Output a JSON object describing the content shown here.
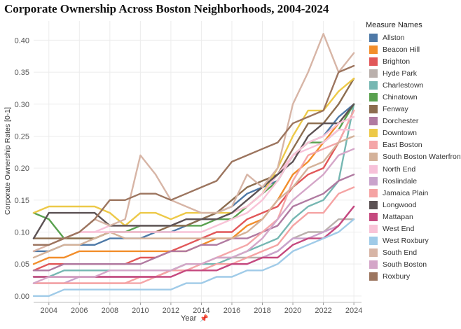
{
  "chart_data": {
    "type": "line",
    "title": "Corporate Ownership Across Boston Neighborhoods, 2004-2024",
    "xlabel": "Year",
    "ylabel": "Corporate Ownership Rates [0-1]",
    "xlim": [
      2003,
      2024.5
    ],
    "ylim": [
      -0.01,
      0.43
    ],
    "x_ticks": [
      "2004",
      "2006",
      "2008",
      "2010",
      "2012",
      "2014",
      "2016",
      "2018",
      "2020",
      "2022",
      "2024"
    ],
    "y_ticks": [
      "0.00",
      "0.05",
      "0.10",
      "0.15",
      "0.20",
      "0.25",
      "0.30",
      "0.35",
      "0.40"
    ],
    "grid": true,
    "legend_title": "Measure Names",
    "legend_position": "right",
    "x": [
      2003,
      2004,
      2005,
      2006,
      2007,
      2008,
      2009,
      2010,
      2011,
      2012,
      2013,
      2014,
      2015,
      2016,
      2017,
      2018,
      2019,
      2020,
      2021,
      2022,
      2023,
      2024
    ],
    "series": [
      {
        "name": "Allston",
        "color": "#4e79a7",
        "values": [
          0.07,
          0.07,
          0.08,
          0.08,
          0.08,
          0.09,
          0.09,
          0.09,
          0.1,
          0.1,
          0.11,
          0.12,
          0.13,
          0.14,
          0.16,
          0.17,
          0.18,
          0.22,
          0.24,
          0.25,
          0.28,
          0.3
        ]
      },
      {
        "name": "Beacon Hill",
        "color": "#f28e2b",
        "values": [
          0.05,
          0.06,
          0.06,
          0.07,
          0.07,
          0.07,
          0.07,
          0.07,
          0.07,
          0.07,
          0.07,
          0.08,
          0.09,
          0.09,
          0.11,
          0.12,
          0.15,
          0.19,
          0.21,
          0.24,
          0.27,
          0.3
        ]
      },
      {
        "name": "Brighton",
        "color": "#e15759",
        "values": [
          0.04,
          0.05,
          0.05,
          0.05,
          0.05,
          0.05,
          0.05,
          0.06,
          0.06,
          0.07,
          0.08,
          0.09,
          0.1,
          0.1,
          0.12,
          0.13,
          0.14,
          0.17,
          0.19,
          0.2,
          0.24,
          0.29
        ]
      },
      {
        "name": "Hyde Park",
        "color": "#bab0ac",
        "values": [
          0.03,
          0.03,
          0.03,
          0.03,
          0.03,
          0.03,
          0.03,
          0.03,
          0.03,
          0.04,
          0.05,
          0.05,
          0.06,
          0.06,
          0.06,
          0.06,
          0.07,
          0.09,
          0.1,
          0.1,
          0.12,
          0.12
        ]
      },
      {
        "name": "Charlestown",
        "color": "#76b7b2",
        "values": [
          0.03,
          0.03,
          0.04,
          0.04,
          0.04,
          0.04,
          0.04,
          0.04,
          0.04,
          0.04,
          0.05,
          0.05,
          0.05,
          0.06,
          0.07,
          0.08,
          0.09,
          0.12,
          0.14,
          0.15,
          0.18,
          0.3
        ]
      },
      {
        "name": "Chinatown",
        "color": "#59a14f",
        "values": [
          0.13,
          0.12,
          0.09,
          0.09,
          0.09,
          0.1,
          0.1,
          0.11,
          0.11,
          0.11,
          0.11,
          0.11,
          0.12,
          0.12,
          0.14,
          0.16,
          0.18,
          0.22,
          0.24,
          0.24,
          0.26,
          0.3
        ]
      },
      {
        "name": "Fenway",
        "color": "#8c6d4f",
        "values": [
          0.09,
          0.09,
          0.09,
          0.09,
          0.09,
          0.1,
          0.1,
          0.1,
          0.1,
          0.11,
          0.11,
          0.12,
          0.13,
          0.15,
          0.17,
          0.18,
          0.19,
          0.23,
          0.27,
          0.27,
          0.3,
          0.34
        ]
      },
      {
        "name": "Dorchester",
        "color": "#b07aa1",
        "values": [
          0.04,
          0.04,
          0.05,
          0.05,
          0.05,
          0.05,
          0.05,
          0.05,
          0.06,
          0.07,
          0.07,
          0.08,
          0.08,
          0.09,
          0.09,
          0.1,
          0.11,
          0.14,
          0.15,
          0.16,
          0.18,
          0.19
        ]
      },
      {
        "name": "Downtown",
        "color": "#edc948",
        "values": [
          0.13,
          0.14,
          0.14,
          0.14,
          0.14,
          0.13,
          0.11,
          0.13,
          0.13,
          0.12,
          0.13,
          0.13,
          0.13,
          0.13,
          0.14,
          0.16,
          0.2,
          0.25,
          0.29,
          0.29,
          0.32,
          0.34
        ]
      },
      {
        "name": "East Boston",
        "color": "#f4a6a8",
        "values": [
          0.02,
          0.02,
          0.02,
          0.02,
          0.02,
          0.02,
          0.02,
          0.02,
          0.03,
          0.04,
          0.04,
          0.05,
          0.06,
          0.07,
          0.08,
          0.1,
          0.12,
          0.18,
          0.22,
          0.23,
          0.24,
          0.29
        ]
      },
      {
        "name": "South Boston Waterfront",
        "color": "#d4b29a",
        "values": [
          0.06,
          0.07,
          0.08,
          0.08,
          0.09,
          0.1,
          0.09,
          0.09,
          0.09,
          0.09,
          0.09,
          0.09,
          0.09,
          0.09,
          0.1,
          0.12,
          0.15,
          0.17,
          0.2,
          0.21,
          0.24,
          0.25
        ]
      },
      {
        "name": "North End",
        "color": "#f7c1d9",
        "values": [
          0.07,
          0.08,
          0.09,
          0.1,
          0.1,
          0.11,
          0.11,
          0.11,
          0.11,
          0.11,
          0.12,
          0.12,
          0.12,
          0.13,
          0.14,
          0.16,
          0.19,
          0.22,
          0.23,
          0.24,
          0.26,
          0.26
        ]
      },
      {
        "name": "Roslindale",
        "color": "#c9a3cc",
        "values": [
          0.02,
          0.02,
          0.02,
          0.03,
          0.03,
          0.03,
          0.03,
          0.03,
          0.03,
          0.04,
          0.04,
          0.04,
          0.04,
          0.05,
          0.05,
          0.06,
          0.07,
          0.09,
          0.09,
          0.1,
          0.11,
          0.14
        ]
      },
      {
        "name": "Jamaica Plain",
        "color": "#f5a3a3",
        "values": [
          0.02,
          0.02,
          0.02,
          0.02,
          0.02,
          0.02,
          0.02,
          0.03,
          0.03,
          0.04,
          0.04,
          0.04,
          0.05,
          0.05,
          0.06,
          0.07,
          0.08,
          0.11,
          0.13,
          0.13,
          0.16,
          0.17
        ]
      },
      {
        "name": "Longwood",
        "color": "#5c5254",
        "values": [
          0.09,
          0.13,
          0.13,
          0.13,
          0.13,
          0.11,
          0.11,
          0.11,
          0.11,
          0.11,
          0.12,
          0.12,
          0.12,
          0.13,
          0.15,
          0.17,
          0.19,
          0.21,
          0.25,
          0.27,
          0.27,
          0.3
        ]
      },
      {
        "name": "Mattapan",
        "color": "#c5497f",
        "values": [
          0.03,
          0.03,
          0.03,
          0.03,
          0.03,
          0.03,
          0.03,
          0.03,
          0.03,
          0.03,
          0.04,
          0.04,
          0.04,
          0.05,
          0.05,
          0.06,
          0.06,
          0.08,
          0.09,
          0.09,
          0.11,
          0.14
        ]
      },
      {
        "name": "West End",
        "color": "#f9c3d7",
        "values": [
          0.08,
          0.08,
          0.09,
          0.1,
          0.1,
          0.1,
          0.1,
          0.1,
          0.1,
          0.1,
          0.1,
          0.1,
          0.11,
          0.12,
          0.13,
          0.15,
          0.18,
          0.22,
          0.24,
          0.25,
          0.27,
          0.28
        ]
      },
      {
        "name": "West Roxbury",
        "color": "#a0cbe8",
        "values": [
          0.0,
          0.0,
          0.01,
          0.01,
          0.01,
          0.01,
          0.01,
          0.01,
          0.01,
          0.01,
          0.02,
          0.02,
          0.03,
          0.03,
          0.04,
          0.04,
          0.05,
          0.07,
          0.08,
          0.09,
          0.1,
          0.12
        ]
      },
      {
        "name": "South End",
        "color": "#d7b5a6",
        "values": [
          0.07,
          0.08,
          0.09,
          0.1,
          0.12,
          0.11,
          0.12,
          0.22,
          0.19,
          0.15,
          0.14,
          0.13,
          0.13,
          0.14,
          0.19,
          0.17,
          0.2,
          0.3,
          0.35,
          0.41,
          0.35,
          0.38
        ]
      },
      {
        "name": "South Boston",
        "color": "#d4a6c8",
        "values": [
          0.02,
          0.03,
          0.03,
          0.03,
          0.03,
          0.04,
          0.04,
          0.04,
          0.04,
          0.04,
          0.05,
          0.05,
          0.06,
          0.06,
          0.07,
          0.09,
          0.12,
          0.15,
          0.17,
          0.19,
          0.22,
          0.23
        ]
      },
      {
        "name": "Roxbury",
        "color": "#9c755f",
        "values": [
          0.08,
          0.08,
          0.09,
          0.1,
          0.12,
          0.15,
          0.15,
          0.16,
          0.16,
          0.15,
          0.16,
          0.17,
          0.18,
          0.21,
          0.22,
          0.23,
          0.24,
          0.27,
          0.28,
          0.29,
          0.35,
          0.36
        ]
      }
    ]
  }
}
